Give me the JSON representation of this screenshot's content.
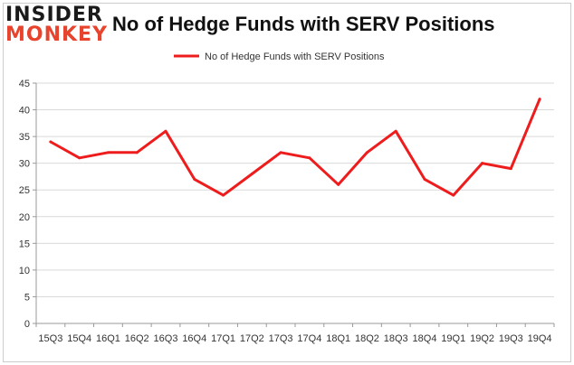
{
  "logo": {
    "line1": "INSIDER",
    "line2": "MONKEY"
  },
  "colors": {
    "series": "#ee1c1c",
    "grid": "#d9d9d9",
    "axis": "#999999",
    "logo_dark": "#1a1a1a",
    "logo_accent": "#e8432d"
  },
  "chart_data": {
    "type": "line",
    "title": "No of Hedge Funds with SERV Positions",
    "xlabel": "",
    "ylabel": "",
    "categories": [
      "15Q3",
      "15Q4",
      "16Q1",
      "16Q2",
      "16Q3",
      "16Q4",
      "17Q1",
      "17Q2",
      "17Q3",
      "17Q4",
      "18Q1",
      "18Q2",
      "18Q3",
      "18Q4",
      "19Q1",
      "19Q2",
      "19Q3",
      "19Q4"
    ],
    "series": [
      {
        "name": "No of Hedge Funds with SERV Positions",
        "values": [
          34,
          31,
          32,
          32,
          36,
          27,
          24,
          28,
          32,
          31,
          26,
          32,
          36,
          27,
          24,
          30,
          29,
          42
        ]
      }
    ],
    "ylim": [
      0,
      45
    ],
    "yticks": [
      0,
      5,
      10,
      15,
      20,
      25,
      30,
      35,
      40,
      45
    ],
    "grid": true,
    "legend_position": "top-center"
  }
}
